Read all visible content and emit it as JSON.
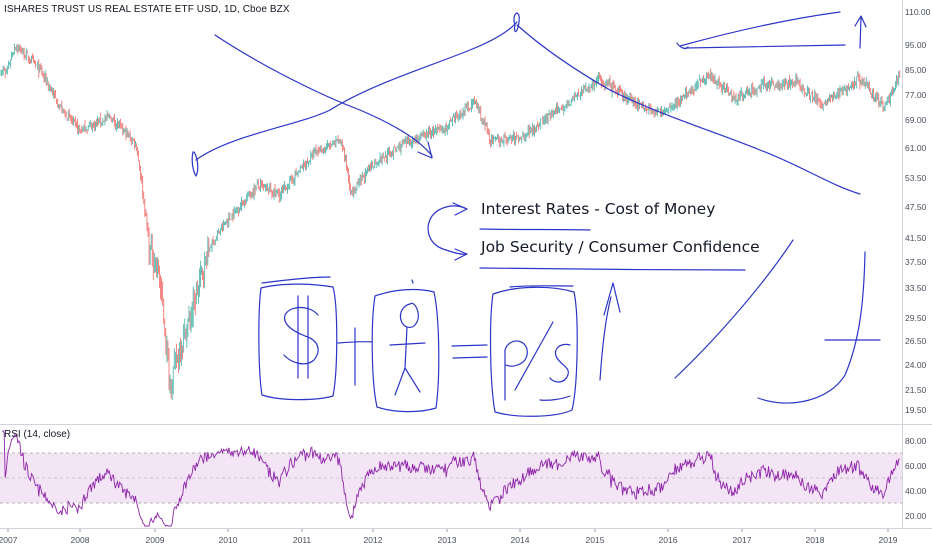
{
  "chart_title": "ISHARES TRUST US REAL ESTATE ETF USD, 1D, Cboe BZX",
  "rsi_title": "RSI (14, close)",
  "annotations": {
    "rates": "Interest Rates - Cost of Money",
    "jobs": "Job Security / Consumer Confidence"
  },
  "colors": {
    "up_candle": "#26a69a",
    "down_candle": "#ef5350",
    "rsi_line": "#8e24aa",
    "rsi_band": "#f3e5f5",
    "drawing": "#2b35c8"
  },
  "chart_data": {
    "type": "candlestick",
    "price_axis": [
      "110.00",
      "95.00",
      "85.00",
      "77.00",
      "69.00",
      "61.00",
      "53.50",
      "47.50",
      "41.50",
      "37.50",
      "33.50",
      "29.50",
      "26.50",
      "24.00",
      "21.50",
      "19.50"
    ],
    "date_axis": [
      "2007",
      "2008",
      "2009",
      "2010",
      "2011",
      "2012",
      "2013",
      "2014",
      "2015",
      "2016",
      "2017",
      "2018",
      "2019"
    ],
    "rsi_axis": [
      "80.00",
      "60.00",
      "40.00",
      "20.00"
    ],
    "rsi_band": [
      30,
      70
    ],
    "price_path": [
      {
        "t": 2006.95,
        "p": 82
      },
      {
        "t": 2007.1,
        "p": 95
      },
      {
        "t": 2007.45,
        "p": 85
      },
      {
        "t": 2007.75,
        "p": 72
      },
      {
        "t": 2008.0,
        "p": 66
      },
      {
        "t": 2008.4,
        "p": 70
      },
      {
        "t": 2008.75,
        "p": 62
      },
      {
        "t": 2008.92,
        "p": 40
      },
      {
        "t": 2009.05,
        "p": 36
      },
      {
        "t": 2009.2,
        "p": 22
      },
      {
        "t": 2009.5,
        "p": 30
      },
      {
        "t": 2009.75,
        "p": 40
      },
      {
        "t": 2010.0,
        "p": 45
      },
      {
        "t": 2010.4,
        "p": 52
      },
      {
        "t": 2010.7,
        "p": 50
      },
      {
        "t": 2011.2,
        "p": 60
      },
      {
        "t": 2011.55,
        "p": 63
      },
      {
        "t": 2011.7,
        "p": 50
      },
      {
        "t": 2012.0,
        "p": 57
      },
      {
        "t": 2012.5,
        "p": 63
      },
      {
        "t": 2013.0,
        "p": 67
      },
      {
        "t": 2013.38,
        "p": 75
      },
      {
        "t": 2013.6,
        "p": 63
      },
      {
        "t": 2014.0,
        "p": 64
      },
      {
        "t": 2014.5,
        "p": 72
      },
      {
        "t": 2015.05,
        "p": 82
      },
      {
        "t": 2015.5,
        "p": 75
      },
      {
        "t": 2015.9,
        "p": 71
      },
      {
        "t": 2016.3,
        "p": 78
      },
      {
        "t": 2016.55,
        "p": 84
      },
      {
        "t": 2016.9,
        "p": 76
      },
      {
        "t": 2017.3,
        "p": 80
      },
      {
        "t": 2017.75,
        "p": 81
      },
      {
        "t": 2018.1,
        "p": 74
      },
      {
        "t": 2018.6,
        "p": 82
      },
      {
        "t": 2018.85,
        "p": 76
      },
      {
        "t": 2018.95,
        "p": 73
      },
      {
        "t": 2019.2,
        "p": 85
      }
    ]
  }
}
